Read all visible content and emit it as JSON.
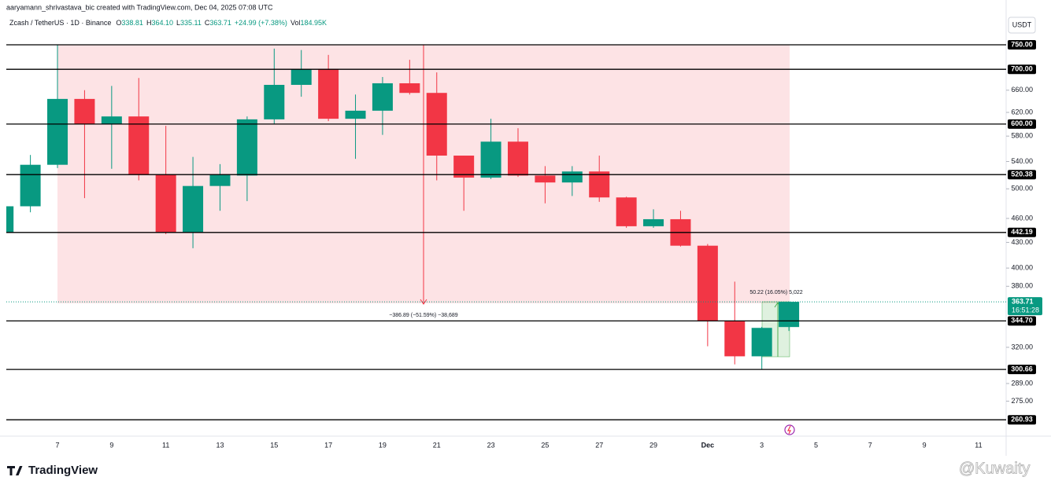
{
  "chart_data": {
    "type": "candlestick",
    "header": "aaryamann_shrivastava_bic created with TradingView.com, Dec 04, 2025 07:08 UTC",
    "symbol": "Zcash / TetherUS · 1D · Binance",
    "legend_keys": [
      "O",
      "H",
      "L",
      "C"
    ],
    "legend_values": [
      "338.81",
      "364.10",
      "335.11",
      "363.71"
    ],
    "legend_change": "+24.99 (+7.38%)",
    "volume_key": "Vol",
    "volume_value": "184.95K",
    "currency": "USDT",
    "log_scale": true,
    "grid": false,
    "up_color": "#089981",
    "down_color": "#f23645",
    "categories": [
      null,
      null,
      "7",
      null,
      "9",
      null,
      "11",
      null,
      "13",
      null,
      "15",
      null,
      "17",
      null,
      "19",
      null,
      "21",
      null,
      "23",
      null,
      "25",
      null,
      "27",
      null,
      "29",
      null,
      "Dec",
      null,
      "3",
      null,
      "5",
      null,
      "7",
      null,
      "9",
      null,
      "11"
    ],
    "open": [
      442,
      476,
      535,
      644,
      600,
      613,
      521,
      442,
      504,
      519,
      608,
      670,
      700,
      609,
      623,
      673,
      655,
      549,
      516,
      571,
      519,
      509,
      525,
      488,
      450,
      459,
      426,
      345,
      312,
      338.81,
      null,
      null,
      null,
      null,
      null,
      null,
      null
    ],
    "high": [
      480,
      550,
      750,
      660,
      668,
      683,
      597,
      547,
      536,
      613,
      742,
      739,
      729,
      652,
      685,
      719,
      694,
      549,
      609,
      593,
      533,
      533,
      549,
      489,
      472,
      470,
      428,
      385,
      339,
      364.1,
      null,
      null,
      null,
      null,
      null,
      null,
      null
    ],
    "low": [
      440,
      468,
      530,
      487,
      529,
      512,
      440,
      423,
      470,
      483,
      600,
      648,
      605,
      544,
      582,
      652,
      512,
      470,
      514,
      517,
      480,
      490,
      482,
      448,
      448,
      425,
      321,
      305,
      301,
      335.11,
      null,
      null,
      null,
      null,
      null,
      null,
      null
    ],
    "close": [
      476,
      535,
      644,
      600,
      613,
      521,
      442,
      504,
      521,
      608,
      670,
      700,
      609,
      623,
      673,
      655,
      549,
      516,
      571,
      519,
      509,
      525,
      488,
      450,
      459,
      426,
      345,
      312,
      338,
      363.71,
      null,
      null,
      null,
      null,
      null,
      null,
      null
    ],
    "ylim": [
      249.2,
      814
    ],
    "yticks": [
      {
        "value": 660,
        "label": "660.00"
      },
      {
        "value": 620,
        "label": "620.00"
      },
      {
        "value": 580,
        "label": "580.00"
      },
      {
        "value": 540,
        "label": "540.00"
      },
      {
        "value": 500,
        "label": "500.00"
      },
      {
        "value": 460,
        "label": "460.00"
      },
      {
        "value": 430,
        "label": "430.00"
      },
      {
        "value": 400,
        "label": "400.00"
      },
      {
        "value": 380,
        "label": "380.00"
      },
      {
        "value": 320,
        "label": "320.00"
      },
      {
        "value": 289,
        "label": "289.00"
      },
      {
        "value": 275,
        "label": "275.00"
      }
    ],
    "levels": [
      {
        "value": 750,
        "label": "750.00"
      },
      {
        "value": 700,
        "label": "700.00"
      },
      {
        "value": 600,
        "label": "600.00"
      },
      {
        "value": 520.38,
        "label": "520.38"
      },
      {
        "value": 442.19,
        "label": "442.19"
      },
      {
        "value": 344.7,
        "label": "344.70"
      },
      {
        "value": 300.66,
        "label": "300.66"
      },
      {
        "value": 260.93,
        "label": "260.93"
      }
    ],
    "price_line": {
      "value": 363.71,
      "label": "363.71",
      "countdown": "16:51:28"
    },
    "measure_down": "−386.89 (−51.59%) −38,689",
    "measure_up": "50.22 (16.05%) 5,022",
    "brand": "TradingView",
    "watermark": "@Kuwaity"
  }
}
